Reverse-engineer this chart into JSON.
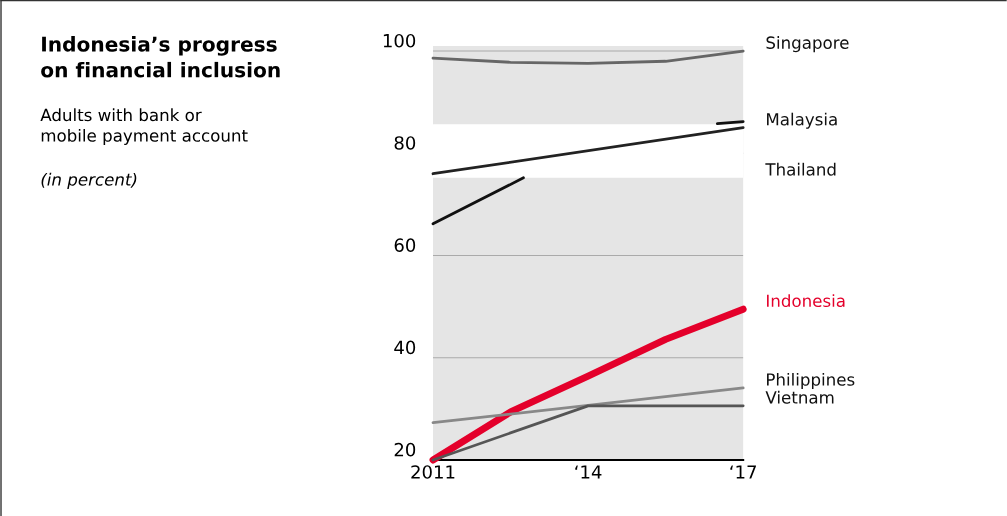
{
  "chart_data": {
    "type": "line",
    "title": "Indonesia’s progress\non financial inclusion",
    "subtitle": "Adults with bank or\nmobile payment account",
    "annotations": [
      "(in percent)"
    ],
    "categories": [
      "2011",
      null,
      null,
      null,
      null,
      null,
      null,
      null,
      null,
      null,
      null,
      null,
      "‘14",
      null,
      null,
      null,
      null,
      null,
      null,
      null,
      null,
      null,
      null,
      null,
      "‘17"
    ],
    "ylim": [
      20,
      101
    ],
    "yticks": [
      20,
      40,
      60,
      80,
      100
    ],
    "grid": "y",
    "legend": false,
    "marker": "none",
    "bands": [
      {
        "axis": "y",
        "from": 75.2,
        "to": 85.7,
        "color": "#ffffff"
      }
    ],
    "series": [
      {
        "name": "Singapore",
        "color": "#666666",
        "values": [
          98.6,
          null,
          null,
          null,
          null,
          null,
          97.8,
          null,
          null,
          null,
          null,
          null,
          97.6,
          null,
          null,
          null,
          null,
          null,
          98.0,
          null,
          null,
          null,
          null,
          null,
          100
        ]
      },
      {
        "name": "Malaysia",
        "color": "#222222",
        "values": [
          76.0,
          null,
          null,
          null,
          null,
          null,
          null,
          null,
          null,
          null,
          null,
          null,
          null,
          null,
          null,
          null,
          null,
          null,
          null,
          null,
          null,
          null,
          null,
          null,
          85.0
        ]
      },
      {
        "color": "#111111",
        "values": [
          null,
          null,
          null,
          null,
          null,
          null,
          null,
          null,
          null,
          null,
          null,
          null,
          null,
          null,
          null,
          null,
          null,
          null,
          null,
          null,
          null,
          null,
          85.8,
          null,
          86.2
        ]
      },
      {
        "name": "Thailand",
        "color": "#111111",
        "values": [
          66.2,
          null,
          null,
          null,
          null,
          null,
          null,
          75.2,
          null,
          null,
          null,
          null,
          null,
          null,
          null,
          null,
          null,
          null,
          null,
          null,
          null,
          null,
          null,
          null,
          null
        ]
      },
      {
        "name": "Indonesia",
        "color": "#e4002b",
        "values": [
          20,
          null,
          null,
          null,
          null,
          null,
          29.4,
          null,
          null,
          null,
          null,
          null,
          36.4,
          null,
          null,
          null,
          null,
          null,
          43.6,
          null,
          null,
          null,
          null,
          null,
          49.5
        ]
      },
      {
        "name": "Philippines",
        "color": "#888888",
        "values": [
          27.3,
          null,
          null,
          null,
          null,
          null,
          null,
          null,
          null,
          null,
          null,
          null,
          null,
          null,
          null,
          null,
          null,
          null,
          null,
          null,
          null,
          null,
          null,
          null,
          34.1
        ]
      },
      {
        "name": "Vietnam",
        "color": "#555555",
        "values": [
          20,
          null,
          null,
          null,
          null,
          null,
          null,
          null,
          null,
          null,
          null,
          null,
          30.6,
          null,
          null,
          null,
          null,
          null,
          null,
          null,
          null,
          null,
          null,
          null,
          30.6
        ]
      }
    ]
  }
}
